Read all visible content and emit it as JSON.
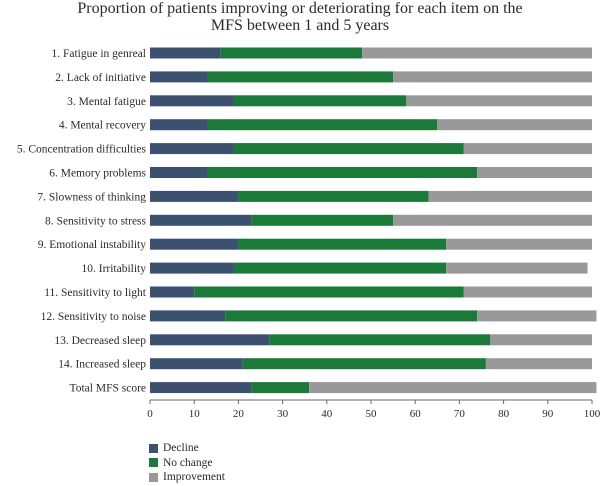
{
  "chart_data": {
    "type": "bar",
    "stacked": true,
    "orientation": "horizontal",
    "title_lines": [
      "Proportion of patients improving or deteriorating for each item on the",
      "MFS between 1 and 5 years"
    ],
    "categories": [
      "1. Fatigue in genreal",
      "2. Lack of initiative",
      "3. Mental fatigue",
      "4. Mental recovery",
      "5. Concentration difficulties",
      "6. Memory problems",
      "7. Slowness of thinking",
      "8. Sensitivity to stress",
      "9. Emotional instability",
      "10. Irritability",
      "11. Sensitivity to light",
      "12. Sensitivity to noise",
      "13. Decreased sleep",
      "14. Increased sleep",
      "Total MFS score"
    ],
    "series": [
      {
        "name": "Decline",
        "color": "#3c5170",
        "values": [
          16,
          13,
          19,
          13,
          19,
          13,
          20,
          23,
          20,
          19,
          10,
          17,
          27,
          21,
          23
        ]
      },
      {
        "name": "No change",
        "color": "#1b7a3a",
        "values": [
          32,
          42,
          39,
          52,
          52,
          61,
          43,
          32,
          47,
          48,
          61,
          57,
          50,
          55,
          13
        ]
      },
      {
        "name": "Improvement",
        "color": "#999999",
        "values": [
          52,
          45,
          42,
          35,
          29,
          26,
          37,
          45,
          33,
          32,
          29,
          27,
          23,
          24,
          65
        ]
      }
    ],
    "xlim": [
      0,
      100
    ],
    "xticks": [
      0,
      10,
      20,
      30,
      40,
      50,
      60,
      70,
      80,
      90,
      100
    ],
    "legend_position": "bottom-left",
    "grid": false
  }
}
